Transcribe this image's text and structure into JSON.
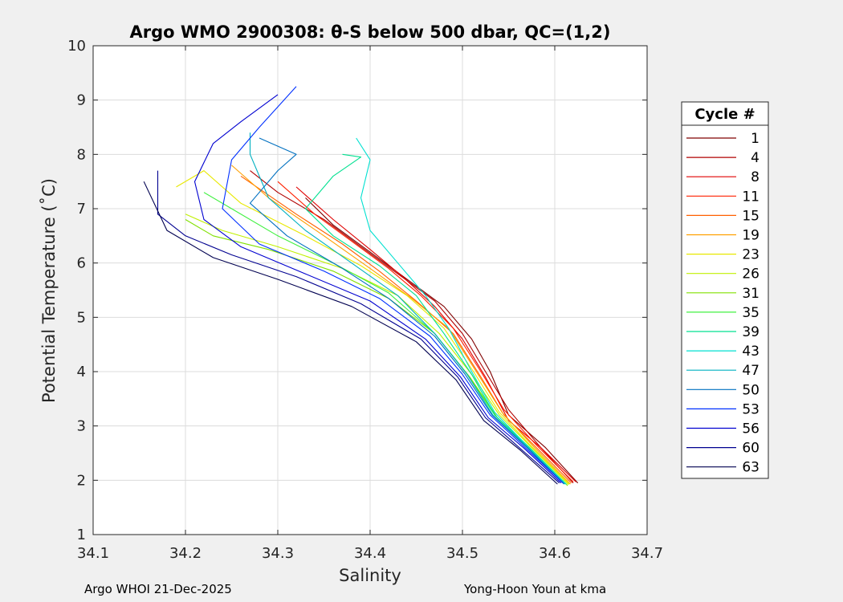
{
  "chart_data": {
    "type": "line",
    "title": "Argo WMO 2900308: θ-S below 500 dbar,  QC=(1,2)",
    "xlabel": "Salinity",
    "ylabel": "Potential Temperature (˚C)",
    "xlim": [
      34.1,
      34.7
    ],
    "ylim": [
      1,
      10
    ],
    "xticks": [
      34.1,
      34.2,
      34.3,
      34.4,
      34.5,
      34.6,
      34.7
    ],
    "xtick_labels": [
      "34.1",
      "34.2",
      "34.3",
      "34.4",
      "34.5",
      "34.6",
      "34.7"
    ],
    "yticks": [
      1,
      2,
      3,
      4,
      5,
      6,
      7,
      8,
      9,
      10
    ],
    "ytick_labels": [
      "1",
      "2",
      "3",
      "4",
      "5",
      "6",
      "7",
      "8",
      "9",
      "10"
    ],
    "grid": true,
    "legend_title": "Cycle #",
    "legend_position": "right",
    "series": [
      {
        "name": "1",
        "color": "#800000",
        "values": [
          [
            34.625,
            1.95
          ],
          [
            34.59,
            2.6
          ],
          [
            34.55,
            3.2
          ],
          [
            34.53,
            4.0
          ],
          [
            34.51,
            4.6
          ],
          [
            34.48,
            5.2
          ],
          [
            34.44,
            5.7
          ],
          [
            34.4,
            6.2
          ],
          [
            34.36,
            6.7
          ],
          [
            34.33,
            7.2
          ]
        ]
      },
      {
        "name": "4",
        "color": "#b00000",
        "values": [
          [
            34.62,
            1.95
          ],
          [
            34.585,
            2.6
          ],
          [
            34.55,
            3.3
          ],
          [
            34.525,
            4.0
          ],
          [
            34.5,
            4.7
          ],
          [
            34.47,
            5.3
          ],
          [
            34.43,
            5.8
          ],
          [
            34.39,
            6.3
          ],
          [
            34.35,
            6.8
          ],
          [
            34.3,
            7.3
          ],
          [
            34.27,
            7.7
          ]
        ]
      },
      {
        "name": "8",
        "color": "#e00000",
        "values": [
          [
            34.623,
            1.97
          ],
          [
            34.585,
            2.6
          ],
          [
            34.55,
            3.1
          ],
          [
            34.525,
            3.9
          ],
          [
            34.5,
            4.6
          ],
          [
            34.47,
            5.2
          ],
          [
            34.435,
            5.75
          ],
          [
            34.4,
            6.25
          ],
          [
            34.36,
            6.8
          ],
          [
            34.32,
            7.4
          ]
        ]
      },
      {
        "name": "11",
        "color": "#ff2000",
        "values": [
          [
            34.62,
            1.97
          ],
          [
            34.58,
            2.65
          ],
          [
            34.545,
            3.3
          ],
          [
            34.52,
            4.0
          ],
          [
            34.49,
            4.8
          ],
          [
            34.455,
            5.4
          ],
          [
            34.42,
            5.9
          ],
          [
            34.38,
            6.4
          ],
          [
            34.34,
            6.9
          ],
          [
            34.3,
            7.5
          ]
        ]
      },
      {
        "name": "15",
        "color": "#ff6000",
        "values": [
          [
            34.618,
            1.95
          ],
          [
            34.58,
            2.6
          ],
          [
            34.545,
            3.2
          ],
          [
            34.52,
            3.9
          ],
          [
            34.49,
            4.7
          ],
          [
            34.45,
            5.3
          ],
          [
            34.41,
            5.85
          ],
          [
            34.37,
            6.35
          ],
          [
            34.32,
            6.9
          ],
          [
            34.26,
            7.6
          ]
        ]
      },
      {
        "name": "19",
        "color": "#ffa000",
        "values": [
          [
            34.617,
            1.93
          ],
          [
            34.578,
            2.6
          ],
          [
            34.543,
            3.25
          ],
          [
            34.515,
            4.0
          ],
          [
            34.485,
            4.8
          ],
          [
            34.445,
            5.35
          ],
          [
            34.4,
            5.9
          ],
          [
            34.35,
            6.5
          ],
          [
            34.29,
            7.2
          ],
          [
            34.25,
            7.8
          ]
        ]
      },
      {
        "name": "23",
        "color": "#e8e800",
        "values": [
          [
            34.616,
            1.93
          ],
          [
            34.576,
            2.6
          ],
          [
            34.54,
            3.25
          ],
          [
            34.512,
            4.0
          ],
          [
            34.48,
            4.8
          ],
          [
            34.44,
            5.4
          ],
          [
            34.39,
            5.95
          ],
          [
            34.33,
            6.5
          ],
          [
            34.26,
            7.1
          ],
          [
            34.22,
            7.7
          ],
          [
            34.19,
            7.4
          ]
        ]
      },
      {
        "name": "26",
        "color": "#c0f000",
        "values": [
          [
            34.615,
            1.92
          ],
          [
            34.575,
            2.6
          ],
          [
            34.54,
            3.2
          ],
          [
            34.51,
            3.95
          ],
          [
            34.475,
            4.7
          ],
          [
            34.43,
            5.4
          ],
          [
            34.37,
            5.9
          ],
          [
            34.3,
            6.3
          ],
          [
            34.24,
            6.6
          ],
          [
            34.2,
            6.9
          ]
        ]
      },
      {
        "name": "31",
        "color": "#80e000",
        "values": [
          [
            34.614,
            1.9
          ],
          [
            34.575,
            2.55
          ],
          [
            34.538,
            3.15
          ],
          [
            34.508,
            3.9
          ],
          [
            34.47,
            4.7
          ],
          [
            34.42,
            5.35
          ],
          [
            34.36,
            5.85
          ],
          [
            34.29,
            6.25
          ],
          [
            34.23,
            6.5
          ],
          [
            34.2,
            6.8
          ]
        ]
      },
      {
        "name": "35",
        "color": "#40f040",
        "values": [
          [
            34.613,
            1.92
          ],
          [
            34.573,
            2.6
          ],
          [
            34.535,
            3.2
          ],
          [
            34.505,
            3.95
          ],
          [
            34.47,
            4.7
          ],
          [
            34.42,
            5.45
          ],
          [
            34.36,
            6.0
          ],
          [
            34.3,
            6.5
          ],
          [
            34.25,
            7.0
          ],
          [
            34.22,
            7.3
          ]
        ]
      },
      {
        "name": "39",
        "color": "#00e090",
        "values": [
          [
            34.612,
            1.93
          ],
          [
            34.572,
            2.6
          ],
          [
            34.535,
            3.2
          ],
          [
            34.51,
            3.95
          ],
          [
            34.48,
            4.7
          ],
          [
            34.45,
            5.4
          ],
          [
            34.41,
            5.95
          ],
          [
            34.36,
            6.5
          ],
          [
            34.33,
            7.0
          ],
          [
            34.36,
            7.6
          ],
          [
            34.39,
            7.95
          ],
          [
            34.37,
            8.0
          ]
        ]
      },
      {
        "name": "43",
        "color": "#00e0d0",
        "values": [
          [
            34.612,
            1.93
          ],
          [
            34.572,
            2.6
          ],
          [
            34.535,
            3.25
          ],
          [
            34.51,
            4.0
          ],
          [
            34.485,
            4.8
          ],
          [
            34.46,
            5.4
          ],
          [
            34.43,
            6.0
          ],
          [
            34.4,
            6.6
          ],
          [
            34.39,
            7.2
          ],
          [
            34.4,
            7.9
          ],
          [
            34.385,
            8.3
          ]
        ]
      },
      {
        "name": "47",
        "color": "#00b0c0",
        "values": [
          [
            34.611,
            1.93
          ],
          [
            34.571,
            2.6
          ],
          [
            34.533,
            3.2
          ],
          [
            34.505,
            3.95
          ],
          [
            34.47,
            4.7
          ],
          [
            34.43,
            5.4
          ],
          [
            34.38,
            6.0
          ],
          [
            34.33,
            6.6
          ],
          [
            34.29,
            7.2
          ],
          [
            34.27,
            8.0
          ],
          [
            34.27,
            8.4
          ]
        ]
      },
      {
        "name": "50",
        "color": "#0070c0",
        "values": [
          [
            34.61,
            1.93
          ],
          [
            34.57,
            2.6
          ],
          [
            34.532,
            3.2
          ],
          [
            34.503,
            3.95
          ],
          [
            34.47,
            4.65
          ],
          [
            34.42,
            5.35
          ],
          [
            34.37,
            5.9
          ],
          [
            34.31,
            6.5
          ],
          [
            34.27,
            7.1
          ],
          [
            34.3,
            7.7
          ],
          [
            34.32,
            8.0
          ],
          [
            34.28,
            8.3
          ]
        ]
      },
      {
        "name": "53",
        "color": "#0030ff",
        "values": [
          [
            34.609,
            1.95
          ],
          [
            34.568,
            2.6
          ],
          [
            34.53,
            3.2
          ],
          [
            34.5,
            3.95
          ],
          [
            34.465,
            4.65
          ],
          [
            34.41,
            5.35
          ],
          [
            34.35,
            5.85
          ],
          [
            34.28,
            6.35
          ],
          [
            34.24,
            7.0
          ],
          [
            34.25,
            7.9
          ],
          [
            34.28,
            8.5
          ],
          [
            34.32,
            9.25
          ]
        ]
      },
      {
        "name": "56",
        "color": "#0000d0",
        "values": [
          [
            34.607,
            1.95
          ],
          [
            34.566,
            2.6
          ],
          [
            34.528,
            3.15
          ],
          [
            34.498,
            3.9
          ],
          [
            34.46,
            4.6
          ],
          [
            34.4,
            5.3
          ],
          [
            34.33,
            5.8
          ],
          [
            34.26,
            6.3
          ],
          [
            34.22,
            6.8
          ],
          [
            34.21,
            7.5
          ],
          [
            34.23,
            8.2
          ],
          [
            34.26,
            8.6
          ],
          [
            34.3,
            9.1
          ]
        ]
      },
      {
        "name": "60",
        "color": "#000090",
        "values": [
          [
            34.605,
            1.95
          ],
          [
            34.565,
            2.55
          ],
          [
            34.525,
            3.15
          ],
          [
            34.495,
            3.9
          ],
          [
            34.455,
            4.6
          ],
          [
            34.39,
            5.25
          ],
          [
            34.32,
            5.75
          ],
          [
            34.25,
            6.15
          ],
          [
            34.2,
            6.5
          ],
          [
            34.17,
            6.9
          ],
          [
            34.17,
            7.7
          ]
        ]
      },
      {
        "name": "63",
        "color": "#000050",
        "values": [
          [
            34.603,
            1.93
          ],
          [
            34.563,
            2.55
          ],
          [
            34.523,
            3.1
          ],
          [
            34.493,
            3.85
          ],
          [
            34.45,
            4.55
          ],
          [
            34.38,
            5.2
          ],
          [
            34.3,
            5.7
          ],
          [
            34.23,
            6.1
          ],
          [
            34.18,
            6.6
          ],
          [
            34.155,
            7.5
          ]
        ]
      }
    ]
  },
  "footer": {
    "left": "Argo WHOI 21-Dec-2025",
    "right": "Yong-Hoon Youn at kma"
  }
}
